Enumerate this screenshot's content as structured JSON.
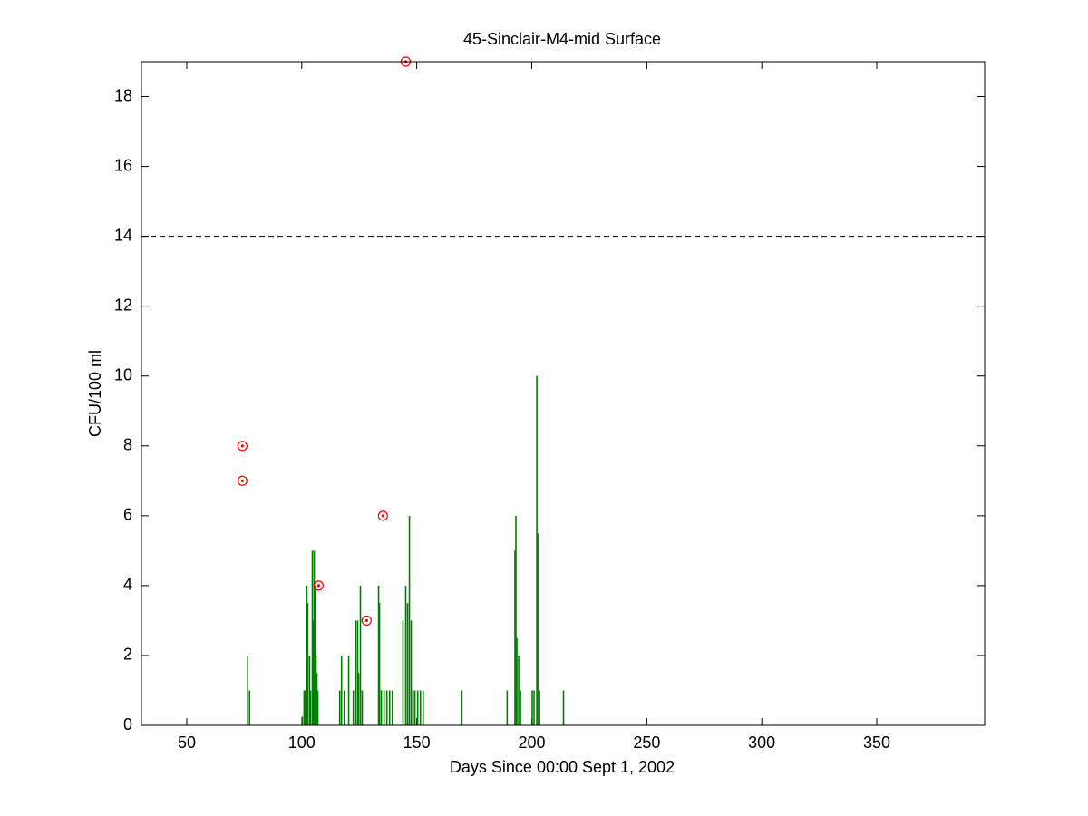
{
  "chart_data": {
    "type": "bar",
    "title": "45-Sinclair-M4-mid Surface",
    "xlabel": "Days Since 00:00 Sept 1, 2002",
    "ylabel": "CFU/100 ml",
    "x": [
      76.5,
      77.3,
      100.2,
      101,
      101.5,
      102.2,
      102.6,
      103.4,
      103.8,
      104.6,
      105,
      105.4,
      105.8,
      106.2,
      106.6,
      107,
      116.5,
      117.3,
      118.5,
      120.4,
      122.4,
      123.5,
      124.3,
      124.7,
      125.5,
      126.3,
      133.4,
      133.8,
      134.6,
      135.8,
      137,
      138.2,
      139.4,
      144,
      145.2,
      146,
      146.8,
      147.6,
      148.4,
      149.2,
      150.4,
      151.6,
      152.8,
      169.6,
      189.3,
      192.7,
      193.1,
      193.5,
      194.3,
      195.1,
      200.2,
      201,
      202.2,
      202.6,
      203.4,
      213.8
    ],
    "values": [
      2,
      1,
      0.25,
      1,
      1,
      4,
      3.5,
      2,
      1,
      5,
      3,
      5,
      4,
      2,
      1.5,
      1,
      1,
      2,
      1,
      2,
      1,
      3,
      3,
      1.5,
      4,
      1,
      4,
      3.5,
      1,
      1,
      1,
      1,
      1,
      3,
      4,
      3.5,
      6,
      3,
      1,
      1,
      1,
      1,
      1,
      1,
      1,
      5,
      6,
      2.5,
      2,
      1,
      1,
      1,
      10,
      5.5,
      1,
      1
    ],
    "color": "#008000",
    "markers": {
      "x": [
        74.2,
        74.2,
        107.3,
        128.2,
        135.3,
        145.2
      ],
      "values": [
        8,
        7,
        4,
        3,
        6,
        19
      ],
      "color": "#ff0000"
    },
    "reference_line": 14,
    "xlim": [
      30.3,
      396.9
    ],
    "ylim": [
      0,
      19
    ],
    "xticks": [
      50,
      100,
      150,
      200,
      250,
      300,
      350
    ],
    "yticks": [
      0,
      2,
      4,
      6,
      8,
      10,
      12,
      14,
      16,
      18
    ]
  }
}
